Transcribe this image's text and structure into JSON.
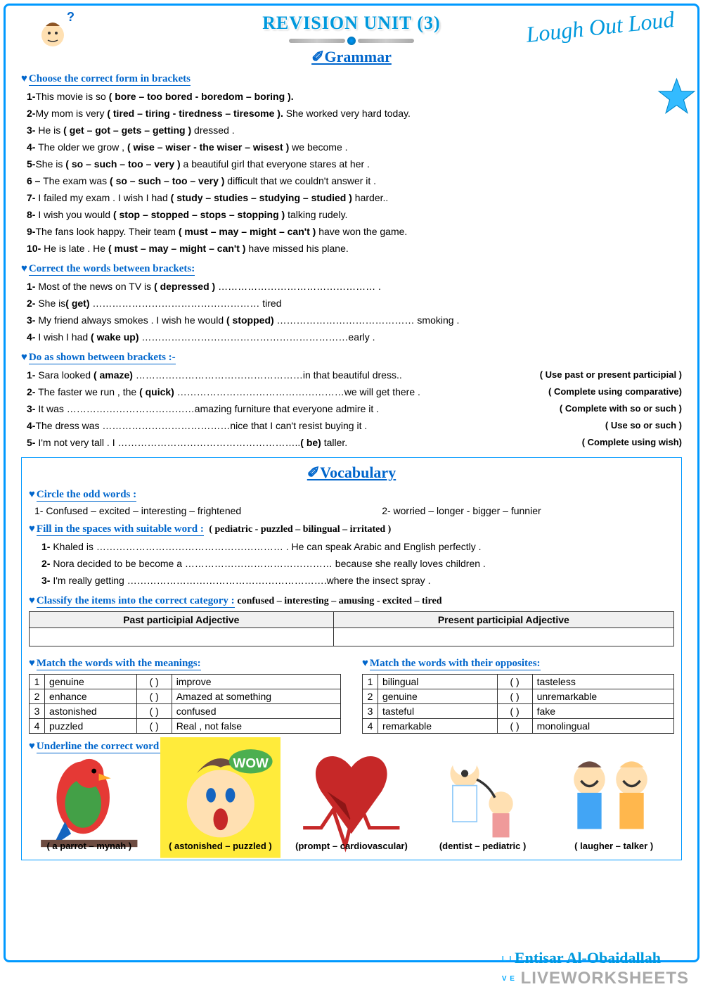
{
  "title": "REVISION UNIT (3)",
  "subhead1": "✐Grammar",
  "lough": "Lough Out Loud",
  "sec1": {
    "title": "Choose the correct form in brackets",
    "items": [
      {
        "n": "1-",
        "pre": "This movie is so ",
        "b": "( bore – too bored -  boredom – boring ).",
        "post": ""
      },
      {
        "n": "2-",
        "pre": "My mom is very ",
        "b": "( tired  – tiring - tiredness –  tiresome ).",
        "post": " She worked very hard today."
      },
      {
        "n": "3-",
        "pre": " He is ",
        "b": "( get – got – gets – getting )",
        "post": " dressed ."
      },
      {
        "n": "4-",
        "pre": " The older we grow , ",
        "b": "( wise – wiser -  the wiser – wisest )",
        "post": " we become ."
      },
      {
        "n": "5-",
        "pre": "She is ",
        "b": "( so –  such  – too  – very )",
        "post": " a beautiful girl that everyone stares at her  ."
      },
      {
        "n": "6 –",
        "pre": " The exam was  ",
        "b": "( so – such – too – very )",
        "post": " difficult that we couldn't answer it ."
      },
      {
        "n": "7-",
        "pre": " I failed my exam . I wish I had ",
        "b": "( study  – studies – studying – studied )",
        "post": " harder.."
      },
      {
        "n": "8-",
        "pre": " I wish you would ",
        "b": "( stop – stopped – stops – stopping  )",
        "post": " talking rudely."
      },
      {
        "n": "9-",
        "pre": "The fans look happy. Their team ",
        "b": "( must – may – might – can't )",
        "post": " have won the game."
      },
      {
        "n": "10-",
        "pre": " He is late . He ",
        "b": "( must – may – might – can't )",
        "post": " have missed his plane."
      }
    ]
  },
  "sec2": {
    "title": "Correct the words between brackets:",
    "items": [
      {
        "n": "1-",
        "txt": " Most of the news on TV is  ( depressed ) ………………………………………… ."
      },
      {
        "n": "2-",
        "txt": " She is( get) ……………………………………………  tired"
      },
      {
        "n": "3-",
        "txt": " My friend always smokes . I wish he would ( stopped) …………………………………… smoking ."
      },
      {
        "n": "4-",
        "txt": " I wish I had ( wake up) ………………………………………………………early  ."
      }
    ]
  },
  "sec3": {
    "title": "Do as shown between brackets  :-",
    "items": [
      {
        "n": "1-",
        "txt": " Sara looked ( amaze) ……………………………………………in that beautiful dress..",
        "hint": "( Use past or present participial )"
      },
      {
        "n": "2-",
        "txt": " The faster we run , the ( quick) ……………………………………………we will get there .",
        "hint": "( Complete using comparative)"
      },
      {
        "n": "3-",
        "txt": " It was …………………………………amazing furniture that everyone admire it .",
        "hint": "( Complete with so or such )"
      },
      {
        "n": "4-",
        "txt": "The dress was …………………………………nice that I can't resist buying it .",
        "hint": "( Use so or such )"
      },
      {
        "n": "5-",
        "txt": " I'm not very tall . I ………………………………………………..( be) taller.",
        "hint": "( Complete using wish)"
      }
    ]
  },
  "vocab": {
    "title": "✐Vocabulary",
    "odd_title": "Circle the odd words :",
    "odd1": "1-  Confused – excited – interesting – frightened",
    "odd2": "2-  worried – longer -  bigger – funnier",
    "fill_title": "Fill  in the spaces with suitable word :",
    "fill_bank": "( pediatric  - puzzled – bilingual – irritated )",
    "fill_items": [
      "1-  Khaled is  ………………………………………………… . He can speak Arabic and English perfectly .",
      "2-  Nora decided to be become a ……………………………………… because she really loves children .",
      "3-  I'm really getting …………………………………………………….where the insect spray ."
    ],
    "classify_title": "Classify the items into  the correct category :",
    "classify_bank": "confused – interesting – amusing - excited – tired",
    "classify_h1": "Past participial Adjective",
    "classify_h2": "Present participial Adjective",
    "match1_title": "Match the words with the meanings:",
    "match1": [
      [
        "1",
        "genuine",
        "improve"
      ],
      [
        "2",
        "enhance",
        "Amazed at something"
      ],
      [
        "3",
        "astonished",
        "confused"
      ],
      [
        "4",
        "puzzled",
        "Real , not false"
      ]
    ],
    "match2_title": "Match the words with their opposites:",
    "match2": [
      [
        "1",
        "bilingual",
        "tasteless"
      ],
      [
        "2",
        "genuine",
        "unremarkable"
      ],
      [
        "3",
        "tasteful",
        "fake"
      ],
      [
        "4",
        "remarkable",
        "monolingual"
      ]
    ],
    "pic_title": "Underline the correct word for each picture:",
    "pics": [
      {
        "label": "( a parrot – mynah )",
        "icon": "parrot"
      },
      {
        "label": "( astonished – puzzled )",
        "icon": "wow"
      },
      {
        "label": "(prompt – cardiovascular)",
        "icon": "heart"
      },
      {
        "label": "(dentist – pediatric )",
        "icon": "doctor"
      },
      {
        "label": "( laugher – talker )",
        "icon": "laugh"
      }
    ]
  },
  "author": "Entisar Al-Obaidallah",
  "footer": "LIVEWORKSHEETS"
}
